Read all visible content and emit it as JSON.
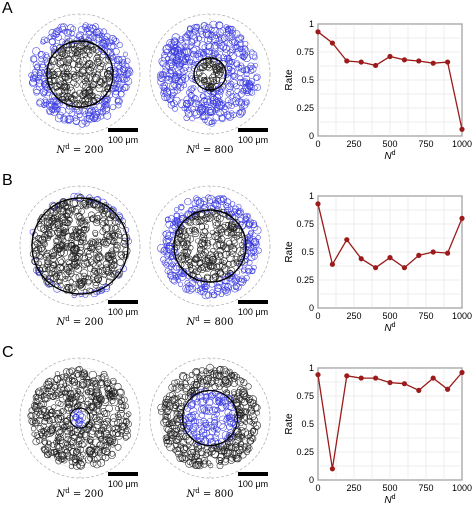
{
  "panels": [
    {
      "letter": "A",
      "discs": [
        {
          "caption_var": "N",
          "caption_sup": "d",
          "caption_eq": " = 200",
          "blue_inner": 0.66,
          "blue_outer": 1.0,
          "black_r": 0.66
        },
        {
          "caption_var": "N",
          "caption_sup": "d",
          "caption_eq": " = 800",
          "blue_inner": 0.32,
          "blue_outer": 1.0,
          "black_r": 0.32
        }
      ],
      "scalebar_label": "100 μm"
    },
    {
      "letter": "B",
      "discs": [
        {
          "caption_var": "N",
          "caption_sup": "d",
          "caption_eq": " = 200",
          "blue_inner": 0.96,
          "blue_outer": 1.0,
          "black_r": 0.96
        },
        {
          "caption_var": "N",
          "caption_sup": "d",
          "caption_eq": " = 800",
          "blue_inner": 0.72,
          "blue_outer": 1.0,
          "black_r": 0.72
        }
      ],
      "scalebar_label": "100 μm"
    },
    {
      "letter": "C",
      "discs": [
        {
          "caption_var": "N",
          "caption_sup": "d",
          "caption_eq": " = 200",
          "blue_center": 0.2,
          "black_r": 1.0
        },
        {
          "caption_var": "N",
          "caption_sup": "d",
          "caption_eq": " = 800",
          "blue_center": 0.55,
          "black_r": 1.0
        }
      ],
      "scalebar_label": "100 μm"
    }
  ],
  "colors": {
    "series": "#9b1b1b",
    "blue_cells": "#3d3de0",
    "black_cells": "#222222"
  },
  "chart_data": [
    {
      "type": "line",
      "x": [
        0,
        100,
        200,
        300,
        400,
        500,
        600,
        700,
        800,
        900,
        1000
      ],
      "series": [
        {
          "values": [
            0.93,
            0.83,
            0.67,
            0.66,
            0.63,
            0.71,
            0.68,
            0.67,
            0.65,
            0.66,
            0.06
          ]
        }
      ],
      "xlabel_var": "N",
      "xlabel_sup": "d",
      "ylabel": "Rate",
      "xlim": [
        0,
        1000
      ],
      "ylim": [
        0,
        1
      ],
      "xticks": [
        "0",
        "250",
        "500",
        "750",
        "1000"
      ],
      "yticks": [
        "0",
        "0.25",
        "0.5",
        "0.75",
        "1"
      ],
      "grid": true
    },
    {
      "type": "line",
      "x": [
        0,
        100,
        200,
        300,
        400,
        500,
        600,
        700,
        800,
        900,
        1000
      ],
      "series": [
        {
          "values": [
            0.93,
            0.39,
            0.61,
            0.44,
            0.36,
            0.45,
            0.36,
            0.47,
            0.5,
            0.49,
            0.8
          ]
        }
      ],
      "xlabel_var": "N",
      "xlabel_sup": "d",
      "ylabel": "Rate",
      "xlim": [
        0,
        1000
      ],
      "ylim": [
        0,
        1
      ],
      "xticks": [
        "0",
        "250",
        "500",
        "750",
        "1000"
      ],
      "yticks": [
        "0",
        "0.25",
        "0.5",
        "0.75",
        "1"
      ],
      "grid": true
    },
    {
      "type": "line",
      "x": [
        0,
        100,
        200,
        300,
        400,
        500,
        600,
        700,
        800,
        900,
        1000
      ],
      "series": [
        {
          "values": [
            0.94,
            0.1,
            0.93,
            0.91,
            0.91,
            0.87,
            0.86,
            0.8,
            0.91,
            0.81,
            0.96
          ]
        }
      ],
      "xlabel_var": "N",
      "xlabel_sup": "d",
      "ylabel": "Rate",
      "xlim": [
        0,
        1000
      ],
      "ylim": [
        0,
        1
      ],
      "xticks": [
        "0",
        "250",
        "500",
        "750",
        "1000"
      ],
      "yticks": [
        "0",
        "0.25",
        "0.5",
        "0.75",
        "1"
      ],
      "grid": true
    }
  ]
}
